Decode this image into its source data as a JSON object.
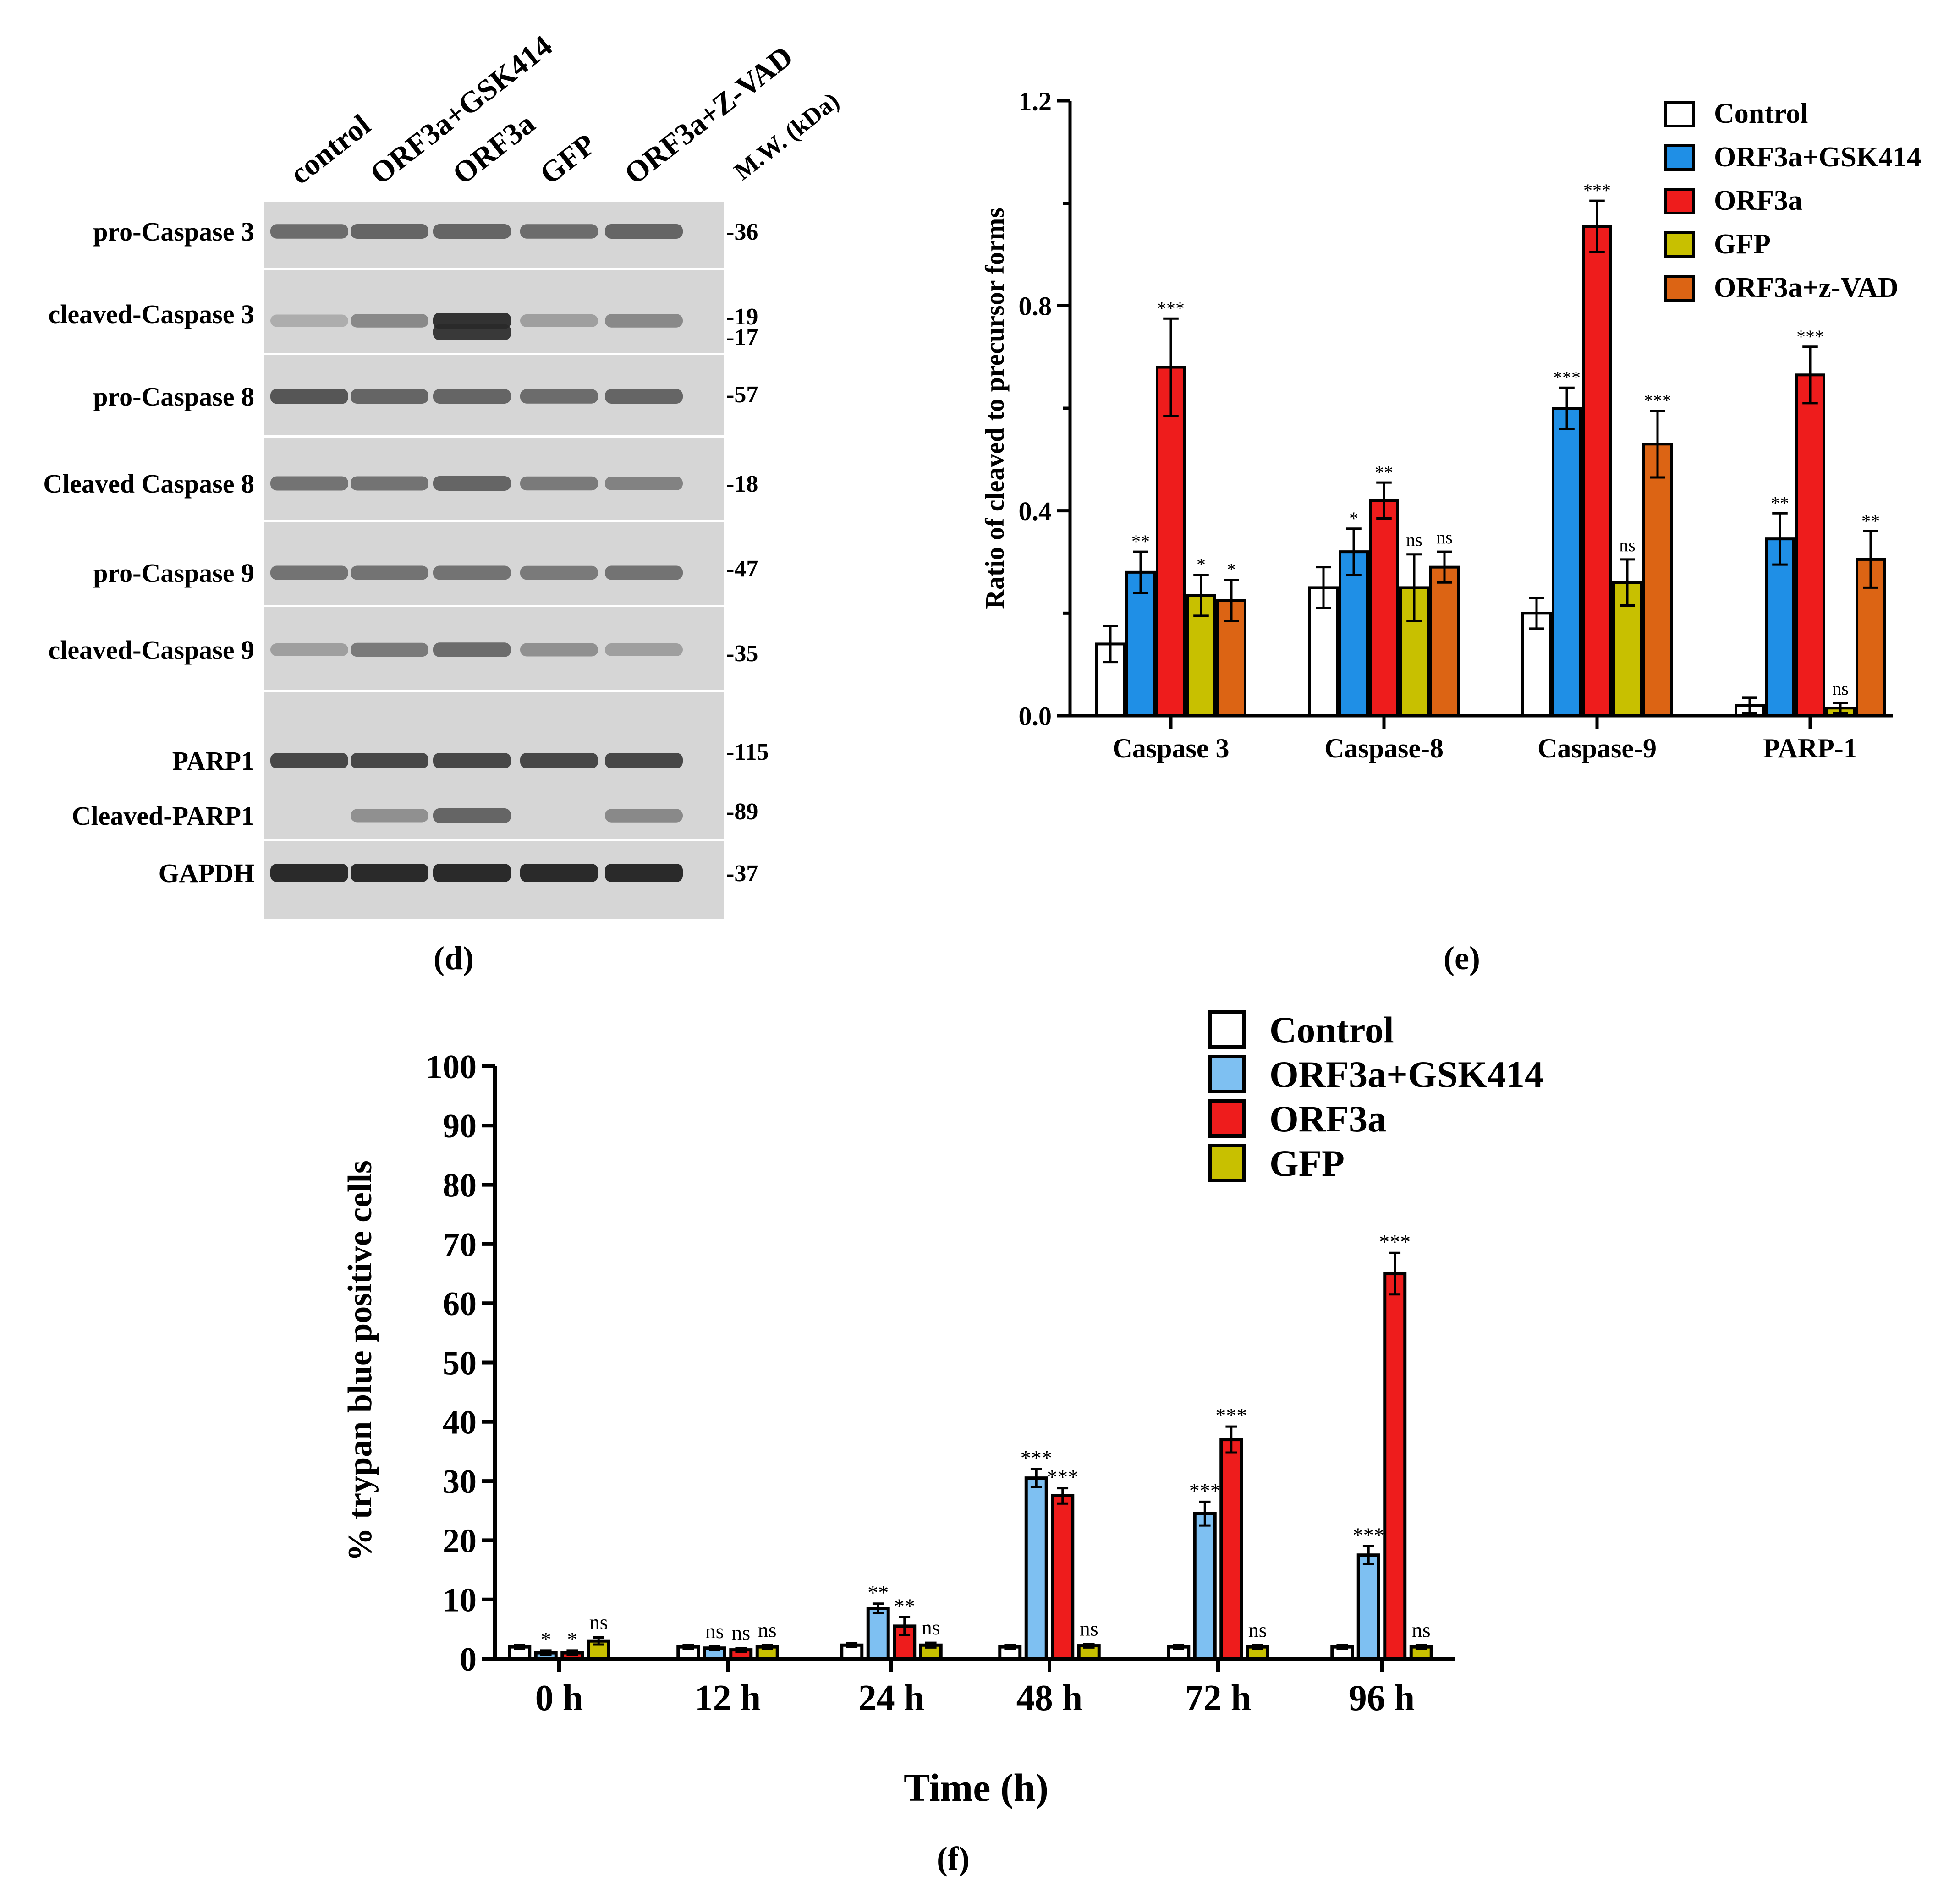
{
  "panel_labels": {
    "d": "(d)",
    "e": "(e)",
    "f": "(f)"
  },
  "colors": {
    "control": "#ffffff",
    "gsk414": "#1f8fe6",
    "gsk414_light": "#7ec0f2",
    "orf3a": "#ee1c1c",
    "gfp": "#c8c000",
    "zvad": "#dc6414",
    "blot_bg": "#d6d6d6",
    "band": "#2a2a2a"
  },
  "western": {
    "lanes": [
      "control",
      "ORF3a+GSK414",
      "ORF3a",
      "GFP",
      "ORF3a+Z-VAD"
    ],
    "mw_header": "M.W. (kDa)",
    "strips": [
      {
        "id": "pro-casp3",
        "labels": [
          "pro-Caspase 3"
        ],
        "mw": [
          "-36"
        ],
        "bands": [
          [
            0.55,
            0.6,
            0.6,
            0.55,
            0.6
          ]
        ]
      },
      {
        "id": "cl-casp3",
        "labels": [
          "cleaved-Caspase 3"
        ],
        "mw": [
          "-19",
          "-17"
        ],
        "bands": [
          [
            0.1,
            0.35,
            0.95,
            0.2,
            0.35
          ],
          [
            0,
            0,
            0.9,
            0,
            0
          ]
        ]
      },
      {
        "id": "pro-casp8",
        "labels": [
          "pro-Caspase 8"
        ],
        "mw": [
          "-57"
        ],
        "bands": [
          [
            0.7,
            0.6,
            0.6,
            0.55,
            0.6
          ]
        ]
      },
      {
        "id": "cl-casp8",
        "labels": [
          "Cleaved Caspase 8"
        ],
        "mw": [
          "-18"
        ],
        "bands": [
          [
            0.5,
            0.5,
            0.6,
            0.45,
            0.4
          ]
        ]
      },
      {
        "id": "pro-casp9",
        "labels": [
          "pro-Caspase 9"
        ],
        "mw": [
          "-47"
        ],
        "bands": [
          [
            0.5,
            0.5,
            0.5,
            0.45,
            0.5
          ]
        ]
      },
      {
        "id": "cl-casp9",
        "labels": [
          "cleaved-Caspase 9"
        ],
        "mw": [
          "-35"
        ],
        "bands": [
          [
            0.2,
            0.45,
            0.55,
            0.3,
            0.2
          ]
        ]
      },
      {
        "id": "parp1",
        "labels": [
          "PARP1",
          "Cleaved-PARP1"
        ],
        "mw": [
          "-115",
          "-89"
        ],
        "bands": [
          [
            0.8,
            0.8,
            0.8,
            0.8,
            0.8
          ],
          [
            0,
            0.3,
            0.6,
            0,
            0.35
          ]
        ]
      },
      {
        "id": "gapdh",
        "labels": [
          "GAPDH"
        ],
        "mw": [
          "-37"
        ],
        "bands": [
          [
            1,
            1,
            1,
            1,
            1
          ]
        ]
      }
    ]
  },
  "chart_data": [
    {
      "id": "e",
      "type": "bar",
      "title": "",
      "xlabel": "",
      "ylabel": "Ratio of cleaved to precursor forms",
      "ylim": [
        0,
        1.2
      ],
      "yticks": [
        "0.0",
        "0.4",
        "0.8",
        "1.2"
      ],
      "yticks_minor": [
        0.2,
        0.6,
        1.0
      ],
      "categories": [
        "Caspase 3",
        "Caspase-8",
        "Caspase-9",
        "PARP-1"
      ],
      "legend_position": "top-right",
      "series": [
        {
          "name": "Control",
          "color_key": "control",
          "values": [
            0.14,
            0.25,
            0.2,
            0.02
          ],
          "errors": [
            0.035,
            0.04,
            0.03,
            0.015
          ],
          "sig": [
            "",
            "",
            "",
            ""
          ]
        },
        {
          "name": "ORF3a+GSK414",
          "color_key": "gsk414",
          "values": [
            0.28,
            0.32,
            0.6,
            0.345
          ],
          "errors": [
            0.04,
            0.045,
            0.04,
            0.05
          ],
          "sig": [
            "**",
            "*",
            "***",
            "**"
          ]
        },
        {
          "name": "ORF3a",
          "color_key": "orf3a",
          "values": [
            0.68,
            0.42,
            0.955,
            0.665
          ],
          "errors": [
            0.095,
            0.035,
            0.05,
            0.055
          ],
          "sig": [
            "***",
            "**",
            "***",
            "***"
          ]
        },
        {
          "name": "GFP",
          "color_key": "gfp",
          "values": [
            0.235,
            0.25,
            0.26,
            0.015
          ],
          "errors": [
            0.04,
            0.065,
            0.045,
            0.01
          ],
          "sig": [
            "*",
            "ns",
            "ns",
            "ns"
          ]
        },
        {
          "name": "ORF3a+z-VAD",
          "color_key": "zvad",
          "values": [
            0.225,
            0.29,
            0.53,
            0.305
          ],
          "errors": [
            0.04,
            0.03,
            0.065,
            0.055
          ],
          "sig": [
            "*",
            "ns",
            "***",
            "**"
          ]
        }
      ]
    },
    {
      "id": "f",
      "type": "bar",
      "title": "",
      "xlabel": "Time (h)",
      "ylabel": "% trypan blue positive cells",
      "ylim": [
        0,
        100
      ],
      "yticks": [
        "0",
        "10",
        "20",
        "30",
        "40",
        "50",
        "60",
        "70",
        "80",
        "90",
        "100"
      ],
      "categories": [
        "0 h",
        "12 h",
        "24 h",
        "48 h",
        "72 h",
        "96 h"
      ],
      "legend_position": "top-right",
      "series": [
        {
          "name": "Control",
          "color_key": "control",
          "values": [
            2,
            2,
            2.3,
            2,
            2,
            2
          ],
          "errors": [
            0.3,
            0.3,
            0.3,
            0.3,
            0.3,
            0.3
          ],
          "sig": [
            "",
            "",
            "",
            "",
            "",
            ""
          ]
        },
        {
          "name": "ORF3a+GSK414",
          "color_key": "gsk414_light",
          "values": [
            1,
            1.8,
            8.5,
            30.5,
            24.5,
            17.5
          ],
          "errors": [
            0.4,
            0.3,
            0.8,
            1.5,
            2,
            1.5
          ],
          "sig": [
            "*",
            "ns",
            "**",
            "***",
            "***",
            "***"
          ]
        },
        {
          "name": "ORF3a",
          "color_key": "orf3a",
          "values": [
            1,
            1.5,
            5.5,
            27.5,
            37,
            65
          ],
          "errors": [
            0.4,
            0.3,
            1.5,
            1.3,
            2.2,
            3.5
          ],
          "sig": [
            "*",
            "ns",
            "**",
            "***",
            "***",
            "***"
          ]
        },
        {
          "name": "GFP",
          "color_key": "gfp",
          "values": [
            3,
            2,
            2.3,
            2.2,
            2,
            2
          ],
          "errors": [
            0.6,
            0.3,
            0.4,
            0.3,
            0.3,
            0.3
          ],
          "sig": [
            "ns",
            "ns",
            "ns",
            "ns",
            "ns",
            "ns"
          ]
        }
      ]
    }
  ]
}
